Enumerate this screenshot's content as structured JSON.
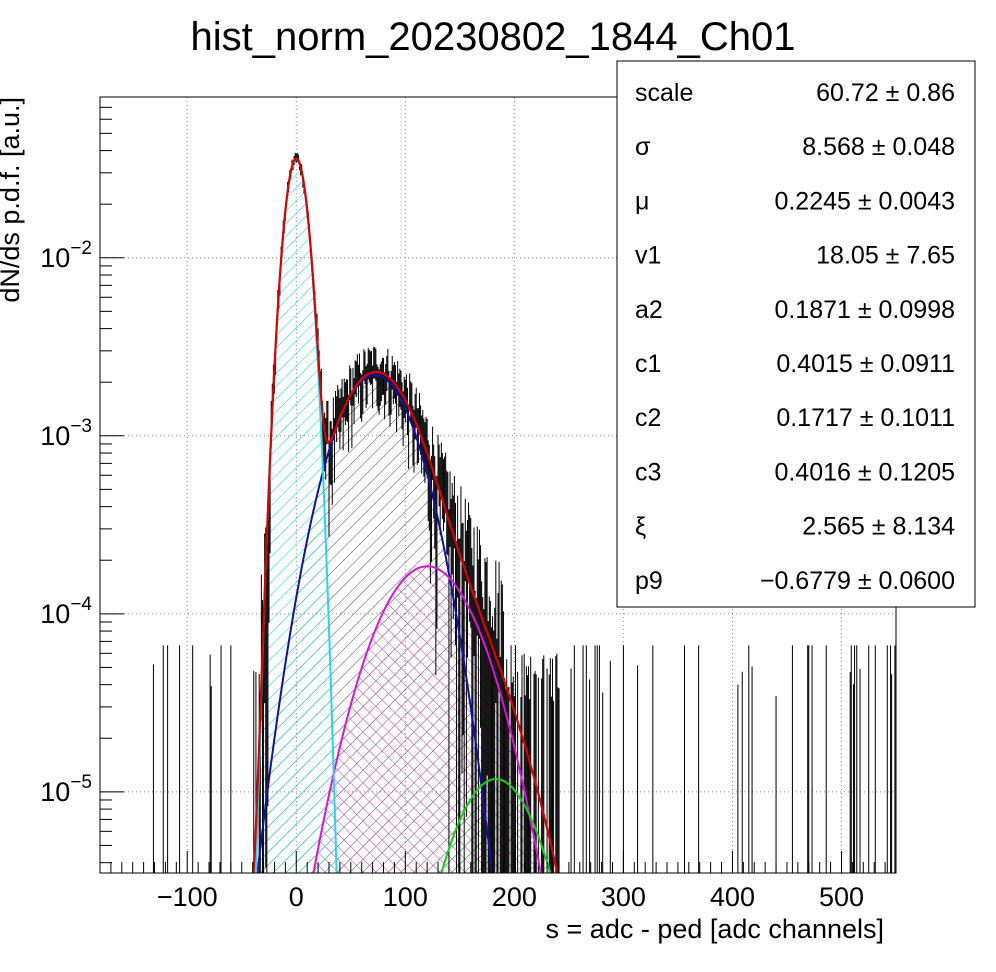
{
  "chart_data": {
    "type": "line",
    "title": "hist_norm_20230802_1844_Ch01",
    "xlabel": "s = adc - ped [adc channels]",
    "ylabel": "dN/ds p.d.f. [a.u.]",
    "xlim": [
      -180,
      550
    ],
    "ylim": [
      3.5e-06,
      0.08
    ],
    "yscale": "log",
    "grid": true,
    "x_ticks": [
      -100,
      0,
      100,
      200,
      300,
      400,
      500
    ],
    "x_tick_labels": [
      "−100",
      "0",
      "100",
      "200",
      "300",
      "400",
      "500"
    ],
    "y_ticks": [
      {
        "value": 1e-05,
        "base": "10",
        "exp": "−5"
      },
      {
        "value": 0.0001,
        "base": "10",
        "exp": "−4"
      },
      {
        "value": 0.001,
        "base": "10",
        "exp": "−3"
      },
      {
        "value": 0.01,
        "base": "10",
        "exp": "−2"
      }
    ],
    "colors": {
      "data": "#000000",
      "total_fit": "#dd0000",
      "pedestal": "#22d8e8",
      "one_pe": "#1010b0",
      "two_pe": "#e010e0",
      "three_pe": "#10d010"
    },
    "series": [
      {
        "key": "pedestal",
        "peak_x": 0,
        "peak_y": 0.036,
        "sigma": 8.6
      },
      {
        "key": "one_pe",
        "peak_x": 72,
        "peak_y": 0.0022,
        "sigma": 30
      },
      {
        "key": "two_pe",
        "peak_x": 120,
        "peak_y": 0.000185,
        "sigma": 37
      },
      {
        "key": "three_pe",
        "peak_x": 183,
        "peak_y": 1.18e-05,
        "sigma": 32
      }
    ],
    "stats": [
      {
        "name": "scale",
        "value": "60.72",
        "error": "0.86"
      },
      {
        "name": "σ",
        "value": "8.568",
        "error": "0.048"
      },
      {
        "name": "μ",
        "value": "0.2245",
        "error": "0.0043"
      },
      {
        "name": "v1",
        "value": "18.05",
        "error": "7.65"
      },
      {
        "name": "a2",
        "value": "0.1871",
        "error": "0.0998"
      },
      {
        "name": "c1",
        "value": "0.4015",
        "error": "0.0911"
      },
      {
        "name": "c2",
        "value": "0.1717",
        "error": "0.1011"
      },
      {
        "name": "c3",
        "value": "0.4016",
        "error": "0.1205"
      },
      {
        "name": "ξ",
        "value": "2.565",
        "error": "8.134"
      },
      {
        "name": "p9",
        "value": "−0.6779",
        "error": "0.0600"
      }
    ],
    "pm": "±"
  }
}
